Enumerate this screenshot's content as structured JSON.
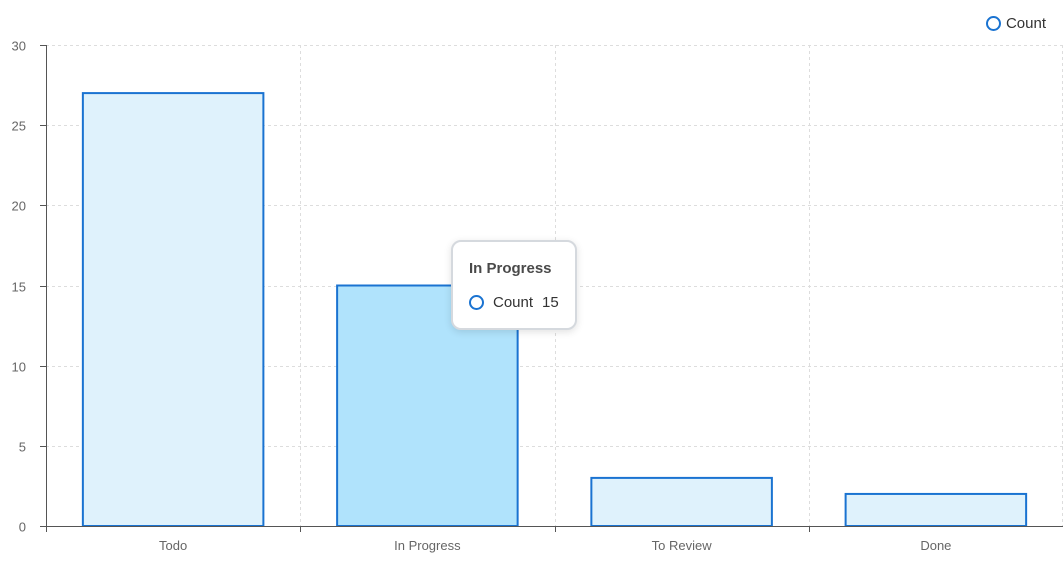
{
  "chart_data": {
    "type": "bar",
    "categories": [
      "Todo",
      "In Progress",
      "To Review",
      "Done"
    ],
    "series": [
      {
        "name": "Count",
        "values": [
          27,
          15,
          3,
          2
        ]
      }
    ],
    "ylim": [
      0,
      30
    ],
    "yticks": [
      "0",
      "5",
      "10",
      "15",
      "20",
      "25",
      "30"
    ],
    "xlabel": "",
    "ylabel": "",
    "title": "",
    "grid": true,
    "legend": "top-right",
    "highlighted_category": "In Progress"
  },
  "legend": {
    "label": "Count"
  },
  "tooltip": {
    "title": "In Progress",
    "series_label": "Count",
    "value": "15"
  },
  "colors": {
    "bar_fill": "#dff2fc",
    "bar_fill_active": "#b0e3fc",
    "bar_stroke": "#1a73d1",
    "grid": "#dddddd",
    "axis": "#555555"
  }
}
